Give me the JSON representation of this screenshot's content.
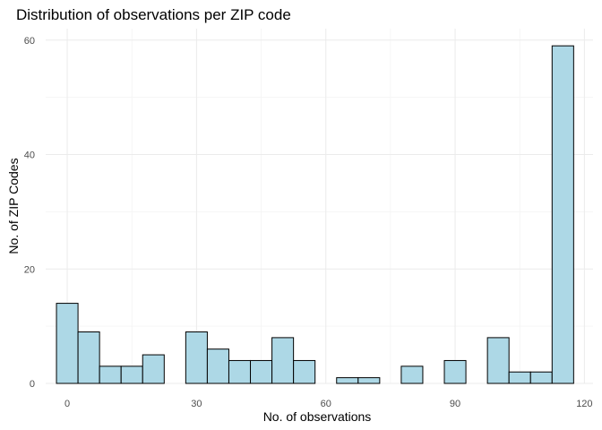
{
  "chart_data": {
    "type": "bar",
    "title": "Distribution of observations per ZIP code",
    "xlabel": "No. of observations",
    "ylabel": "No. of ZIP Codes",
    "bin_width": 5,
    "bin_centers": [
      0,
      5,
      10,
      15,
      20,
      25,
      30,
      35,
      40,
      45,
      50,
      55,
      60,
      65,
      70,
      75,
      80,
      85,
      90,
      95,
      100,
      105,
      110,
      115
    ],
    "values": [
      14,
      9,
      3,
      3,
      5,
      0,
      9,
      6,
      4,
      4,
      8,
      4,
      0,
      1,
      1,
      0,
      3,
      0,
      4,
      0,
      8,
      2,
      2,
      59
    ],
    "xlim": [
      -5,
      122
    ],
    "ylim": [
      0,
      62
    ],
    "x_ticks": [
      0,
      30,
      60,
      90,
      120
    ],
    "y_ticks": [
      0,
      20,
      40,
      60
    ],
    "x_tick_labels": [
      "0",
      "30",
      "60",
      "90",
      "120"
    ],
    "y_tick_labels": [
      "0",
      "20",
      "40",
      "60"
    ],
    "bar_fill": "#add8e6",
    "bar_stroke": "#000000",
    "grid": true,
    "legend": "none"
  }
}
